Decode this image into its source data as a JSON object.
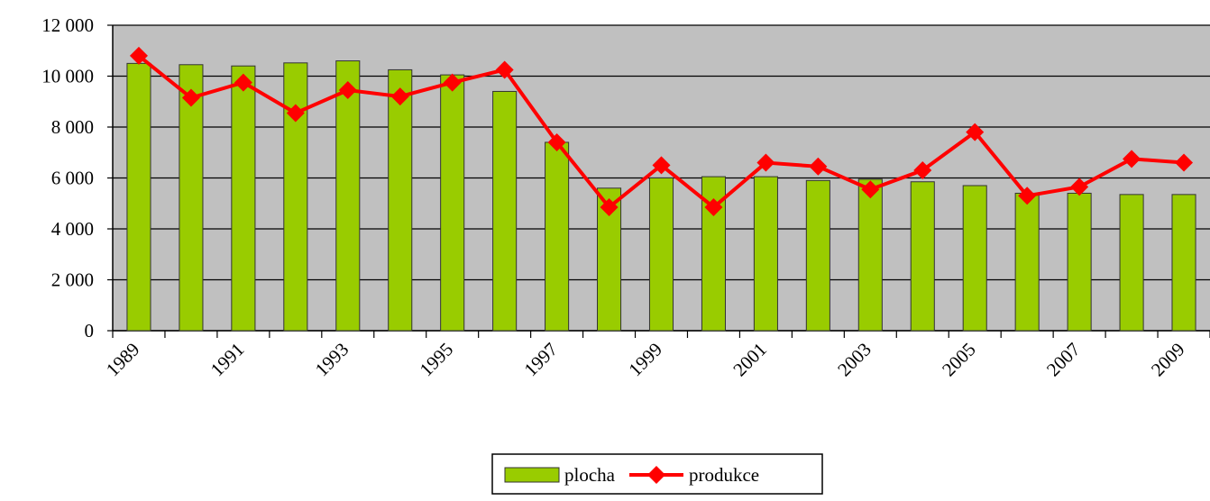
{
  "chart_data": {
    "type": "bar",
    "categories": [
      "1989",
      null,
      "1991",
      null,
      "1993",
      null,
      "1995",
      null,
      "1997",
      null,
      "1999",
      null,
      "2001",
      null,
      "2003",
      null,
      "2005",
      null,
      "2007",
      null,
      "2009"
    ],
    "series": [
      {
        "name": "plocha",
        "type": "bar",
        "color": "#99cc00",
        "values": [
          10500,
          10450,
          10400,
          10520,
          10600,
          10250,
          10050,
          9400,
          7400,
          5600,
          6000,
          6050,
          6050,
          5900,
          5950,
          5850,
          5700,
          5400,
          5400,
          5350,
          5350
        ]
      },
      {
        "name": "produkce",
        "type": "line",
        "color": "#ff0000",
        "values": [
          10800,
          9150,
          9750,
          8550,
          9450,
          9200,
          9750,
          10250,
          7400,
          4850,
          6500,
          4850,
          6600,
          6450,
          5550,
          6300,
          7800,
          5300,
          5650,
          6750,
          6600
        ]
      }
    ],
    "ylim": [
      0,
      12000
    ],
    "yticks": [
      0,
      {
        "value": 2000,
        "label": "2 000"
      },
      {
        "value": 4000,
        "label": "4 000"
      },
      {
        "value": 6000,
        "label": "6 000"
      },
      {
        "value": 8000,
        "label": "8 000"
      },
      {
        "value": 10000,
        "label": "10 000"
      },
      {
        "value": 12000,
        "label": "12 000"
      }
    ],
    "grid": true,
    "legend": "bottom"
  }
}
